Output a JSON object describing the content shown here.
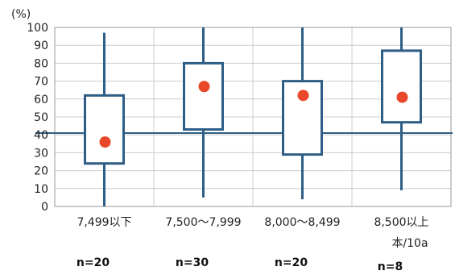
{
  "chart_data": {
    "type": "boxplot",
    "y_unit_label": "(%)",
    "x_unit_label": "本/10a",
    "ylim": [
      0,
      100
    ],
    "y_ticks": [
      0,
      10,
      20,
      30,
      40,
      50,
      60,
      70,
      80,
      90,
      100
    ],
    "grid": true,
    "reference_line": 41,
    "categories": [
      "7,499以下",
      "7,500〜7,999",
      "8,000〜8,499",
      "8,500以上"
    ],
    "sample_sizes": [
      "n=20",
      "n=30",
      "n=20",
      "n=8"
    ],
    "boxes": [
      {
        "whisker_low": 0,
        "q1": 24,
        "q3": 62,
        "whisker_high": 97,
        "mean": 36
      },
      {
        "whisker_low": 5,
        "q1": 43,
        "q3": 80,
        "whisker_high": 100,
        "mean": 67
      },
      {
        "whisker_low": 4,
        "q1": 29,
        "q3": 70,
        "whisker_high": 100,
        "mean": 62
      },
      {
        "whisker_low": 9,
        "q1": 47,
        "q3": 87,
        "whisker_high": 100,
        "mean": 61
      }
    ],
    "colors": {
      "box": "#2e5e86",
      "mean_marker": "#e8472a",
      "reference_line": "#2e5e86",
      "grid": "#cccccc",
      "axis": "#999999"
    }
  }
}
